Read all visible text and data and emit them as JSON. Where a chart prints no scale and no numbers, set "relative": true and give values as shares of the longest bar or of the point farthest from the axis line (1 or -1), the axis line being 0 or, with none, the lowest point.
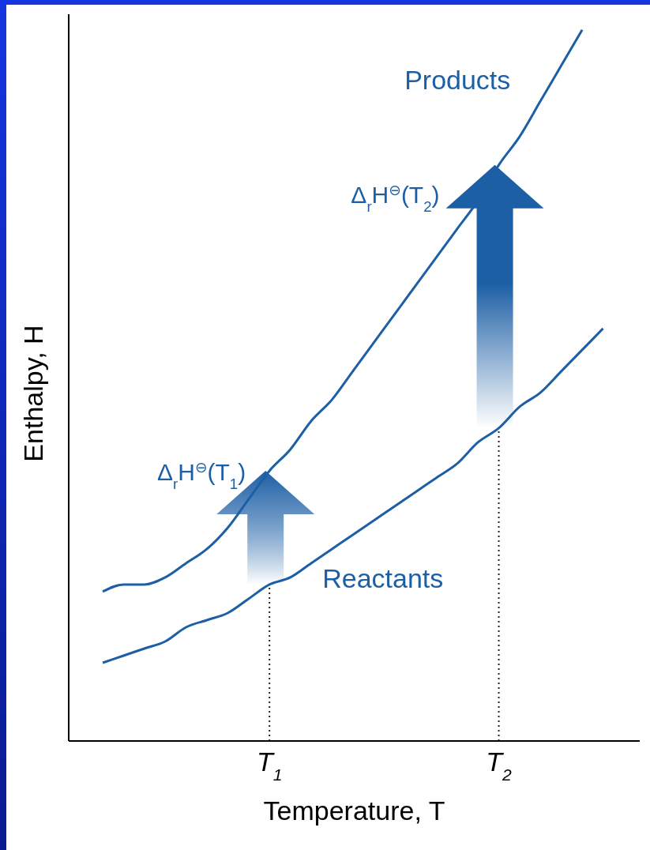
{
  "chart_data": {
    "type": "line",
    "relative": true,
    "xlabel": "Temperature, T",
    "ylabel": "Enthalpy, H",
    "categories": [
      null,
      null,
      null,
      null,
      null,
      null,
      null,
      null,
      "T$_{1}$",
      null,
      null,
      null,
      null,
      null,
      null,
      null,
      null,
      null,
      null,
      "T$_{2}$",
      null,
      null,
      null,
      null,
      null
    ],
    "series": [
      {
        "name": "Products",
        "color": "#1d5fa5",
        "values": [
          0.21,
          0.22,
          0.22,
          0.23,
          0.25,
          0.27,
          0.3,
          0.34,
          0.38,
          0.41,
          0.45,
          0.48,
          0.52,
          0.56,
          0.6,
          0.64,
          0.68,
          0.72,
          0.76,
          0.81,
          0.85,
          0.9,
          0.95,
          1,
          null
        ]
      },
      {
        "name": "Reactants",
        "color": "#1d5fa5",
        "values": [
          0.11,
          0.12,
          0.13,
          0.14,
          0.16,
          0.17,
          0.18,
          0.2,
          0.22,
          0.23,
          0.25,
          0.27,
          0.29,
          0.31,
          0.33,
          0.35,
          0.37,
          0.39,
          0.42,
          0.44,
          0.47,
          0.49,
          0.52,
          0.55,
          0.58
        ]
      }
    ],
    "annotations": [
      "Δ$_{r}$H$^{⊖}$(T$_{1}$)",
      "Δ$_{r}$H$^{⊖}$(T$_{2}$)"
    ],
    "ref_lines": [
      {
        "axis": "x",
        "value": "T$_{1}$",
        "line_style": "dotted",
        "color": "#222222"
      },
      {
        "axis": "x",
        "value": "T$_{2}$",
        "line_style": "dotted",
        "color": "#222222"
      }
    ],
    "legend": false,
    "grid": false,
    "marker": "none",
    "line_style": "solid"
  }
}
